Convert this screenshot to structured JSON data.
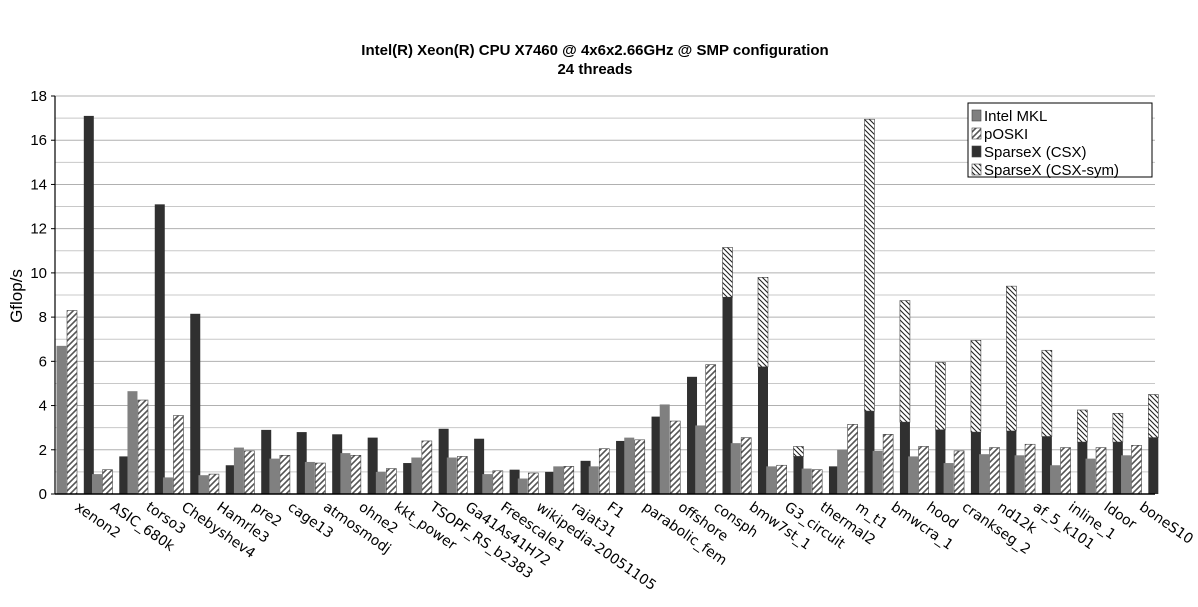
{
  "chart_data": {
    "type": "bar",
    "title": "Intel(R) Xeon(R) CPU X7460 @ 4x6x2.66GHz @ SMP configuration",
    "subtitle": "24 threads",
    "ylabel": "Gflop/s",
    "xlabel": "",
    "ylim": [
      0,
      18
    ],
    "yticks": [
      0,
      2,
      4,
      6,
      8,
      10,
      12,
      14,
      16,
      18
    ],
    "grid": "horizontal",
    "legend_position": "top-right",
    "categories": [
      "xenon2",
      "ASIC_680k",
      "torso3",
      "Chebyshev4",
      "Hamrle3",
      "pre2",
      "cage13",
      "atmosmodj",
      "ohne2",
      "kkt_power",
      "TSOPF_RS_b2383",
      "Ga41As41H72",
      "Freescale1",
      "wikipedia-20051105",
      "rajat31",
      "F1",
      "parabolic_fem",
      "offshore",
      "consph",
      "bmw7st_1",
      "G3_circuit",
      "thermal2",
      "m_t1",
      "bmwcra_1",
      "hood",
      "crankseg_2",
      "nd12k",
      "af_5_k101",
      "inline_1",
      "ldoor",
      "boneS10"
    ],
    "series": [
      {
        "name": "Intel MKL",
        "color": "#808080",
        "pattern": "solid",
        "values": [
          6.7,
          0.9,
          4.65,
          0.75,
          0.85,
          2.1,
          1.6,
          1.45,
          1.85,
          1.0,
          1.65,
          1.65,
          0.9,
          0.7,
          1.25,
          1.25,
          2.55,
          4.05,
          3.1,
          2.3,
          1.25,
          1.15,
          2.0,
          1.95,
          1.7,
          1.4,
          1.8,
          1.75,
          1.3,
          1.6,
          1.75
        ]
      },
      {
        "name": "pOSKI",
        "color": "#9a9a9a",
        "pattern": "diagonal-hatch",
        "values": [
          8.3,
          1.1,
          4.25,
          3.55,
          0.9,
          1.95,
          1.75,
          1.4,
          1.75,
          1.15,
          2.4,
          1.7,
          1.05,
          0.95,
          1.25,
          2.05,
          2.45,
          3.3,
          5.85,
          2.55,
          1.3,
          1.1,
          3.15,
          2.7,
          2.15,
          1.95,
          2.1,
          2.25,
          2.1,
          2.1,
          2.2
        ]
      },
      {
        "name": "SparseX (CSX)",
        "color": "#303030",
        "pattern": "solid",
        "values": [
          17.1,
          1.7,
          13.1,
          8.15,
          1.3,
          2.9,
          2.8,
          2.7,
          2.55,
          1.4,
          2.95,
          2.5,
          1.1,
          1.0,
          1.5,
          2.4,
          3.5,
          5.3,
          8.9,
          5.75,
          1.7,
          1.25,
          3.75,
          3.25,
          2.9,
          2.8,
          2.85,
          2.6,
          2.35,
          2.35,
          2.55
        ]
      },
      {
        "name": "SparseX (CSX-sym)",
        "color": "#303030",
        "pattern": "backslash-hatch",
        "values": [
          null,
          null,
          null,
          null,
          null,
          null,
          null,
          null,
          null,
          null,
          null,
          null,
          null,
          null,
          null,
          null,
          null,
          null,
          11.15,
          9.8,
          2.15,
          null,
          16.95,
          8.75,
          5.95,
          6.95,
          9.4,
          6.5,
          3.8,
          3.65,
          4.5
        ]
      }
    ]
  }
}
